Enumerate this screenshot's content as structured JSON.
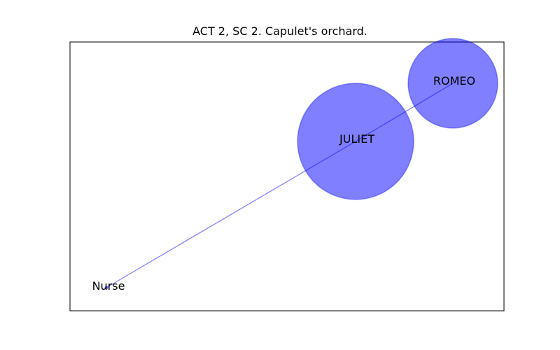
{
  "title": "ACT 2, SC 2. Capulet's orchard.",
  "colors": {
    "node": "#0000ff",
    "edge": "#0000ff",
    "frame": "#000000"
  },
  "nodes": [
    {
      "id": "romeo",
      "label": "ROMEO"
    },
    {
      "id": "juliet",
      "label": "JULIET"
    },
    {
      "id": "nurse",
      "label": "Nurse"
    }
  ],
  "edges": [
    {
      "from": "romeo",
      "to": "juliet"
    },
    {
      "from": "juliet",
      "to": "nurse"
    }
  ]
}
